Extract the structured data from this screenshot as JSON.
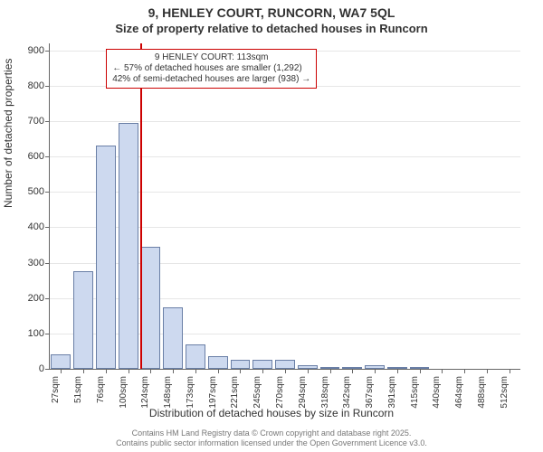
{
  "title": "9, HENLEY COURT, RUNCORN, WA7 5QL",
  "subtitle": "Size of property relative to detached houses in Runcorn",
  "ylabel": "Number of detached properties",
  "xlabel": "Distribution of detached houses by size in Runcorn",
  "footer_line1": "Contains HM Land Registry data © Crown copyright and database right 2025.",
  "footer_line2": "Contains public sector information licensed under the Open Government Licence v3.0.",
  "chart": {
    "type": "histogram",
    "ymin": 0,
    "ymax": 920,
    "yticks": [
      0,
      100,
      200,
      300,
      400,
      500,
      600,
      700,
      800,
      900
    ],
    "bar_fill": "#cdd9ef",
    "bar_edge": "#6a7fa6",
    "grid_color": "#e6e6e6",
    "axis_color": "#666666",
    "marker_value": 113,
    "marker_color": "#cc0000",
    "annotation_border": "#cc0000",
    "annotation_lines": [
      "9 HENLEY COURT: 113sqm",
      "← 57% of detached houses are smaller (1,292)",
      "42% of semi-detached houses are larger (938) →"
    ],
    "categories": [
      "27sqm",
      "51sqm",
      "76sqm",
      "100sqm",
      "124sqm",
      "148sqm",
      "173sqm",
      "197sqm",
      "221sqm",
      "245sqm",
      "270sqm",
      "294sqm",
      "318sqm",
      "342sqm",
      "367sqm",
      "391sqm",
      "415sqm",
      "440sqm",
      "464sqm",
      "488sqm",
      "512sqm"
    ],
    "values": [
      40,
      275,
      630,
      695,
      345,
      175,
      70,
      35,
      25,
      25,
      25,
      10,
      5,
      5,
      10,
      5,
      5,
      0,
      0,
      0,
      0
    ],
    "bar_width_ratio": 0.88,
    "x_unit_lower": 27,
    "x_unit_upper": 512
  }
}
